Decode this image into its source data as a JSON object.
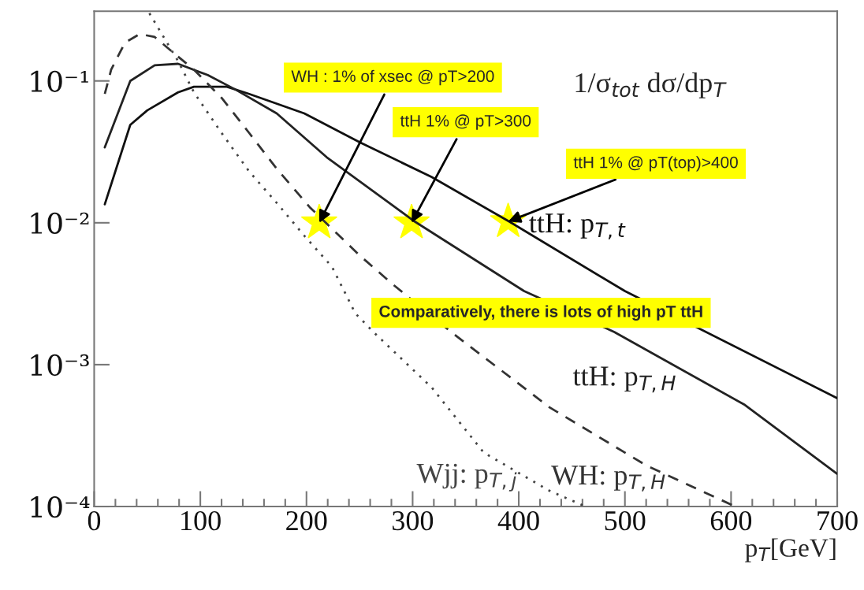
{
  "chart_data": {
    "type": "line",
    "title": "1/σ$_{tot}$ dσ/dp$_{T}$",
    "xlabel": "p$_{T}$[GeV]",
    "xlim": [
      0,
      700
    ],
    "xticks": [
      0,
      100,
      200,
      300,
      400,
      500,
      600,
      700
    ],
    "ylim": [
      0.0001,
      0.31
    ],
    "log": true,
    "yticks": [
      {
        "value": 0.0001,
        "label": "10⁻⁴"
      },
      {
        "value": 0.001,
        "label": "10⁻³"
      },
      {
        "value": 0.01,
        "label": "10⁻²"
      },
      {
        "value": 0.1,
        "label": "10⁻¹"
      }
    ],
    "grid": false,
    "series": [
      {
        "name": "ttH: p$_{T,t}$",
        "color": "#111111",
        "line_style": "solid",
        "x": [
          10,
          34,
          50,
          79,
          94,
          125,
          146,
          198,
          250,
          318,
          391,
          500,
          700
        ],
        "values": [
          0.0135,
          0.049,
          0.062,
          0.083,
          0.091,
          0.091,
          0.081,
          0.059,
          0.037,
          0.021,
          0.0102,
          0.0033,
          0.00058
        ]
      },
      {
        "name": "ttH: p$_{T,H}$",
        "color": "#222222",
        "line_style": "solid",
        "x": [
          10,
          34,
          57,
          79,
          107,
          133,
          172,
          219,
          302,
          405,
          490,
          613,
          700
        ],
        "values": [
          0.034,
          0.1,
          0.129,
          0.132,
          0.11,
          0.087,
          0.059,
          0.029,
          0.0102,
          0.0033,
          0.0017,
          0.00052,
          0.00017
        ]
      },
      {
        "name": "WH: p$_{T,H}$",
        "color": "#333333",
        "line_style": "dashed",
        "x": [
          10,
          16,
          29,
          43,
          57,
          76,
          94,
          120,
          146,
          172,
          203,
          250,
          281,
          338,
          429,
          520,
          604
        ],
        "values": [
          0.081,
          0.12,
          0.186,
          0.214,
          0.204,
          0.155,
          0.12,
          0.076,
          0.043,
          0.024,
          0.0129,
          0.0059,
          0.0037,
          0.00166,
          0.0005,
          0.000195,
          0.0001
        ]
      },
      {
        "name": "Wjj: p$_{T,j}$",
        "color": "#444444",
        "line_style": "dotted",
        "x": [
          52,
          79,
          94,
          120,
          146,
          172,
          198,
          224,
          246,
          263,
          318,
          367,
          429,
          463
        ],
        "values": [
          0.3,
          0.138,
          0.083,
          0.043,
          0.023,
          0.0138,
          0.0081,
          0.0049,
          0.0023,
          0.0017,
          0.00069,
          0.00024,
          0.000129,
          0.0001
        ]
      },
      {
        "type": "scatter",
        "marker": "star",
        "color": "#ffff00",
        "x": [
          212,
          299,
          390
        ],
        "values": [
          0.01,
          0.01,
          0.0102
        ]
      }
    ],
    "annotations": [
      {
        "text": "WH : 1% of xsec @ pT>200",
        "x": 212,
        "y": 0.01
      },
      {
        "text": "ttH 1% @ pT>300",
        "x": 299,
        "y": 0.01
      },
      {
        "text": "ttH 1% @ pT(top)>400",
        "x": 390,
        "y": 0.0102
      },
      "Comparatively, there is lots of high pT ttH"
    ]
  }
}
